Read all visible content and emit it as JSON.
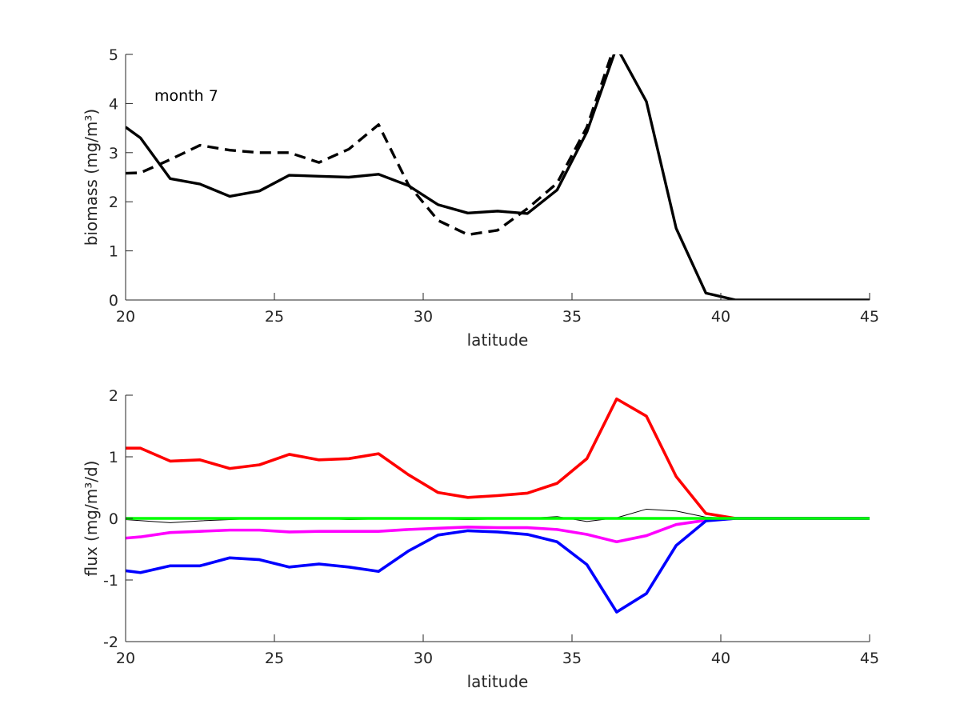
{
  "chart_data": [
    {
      "type": "line",
      "annotation": "month 7",
      "xlabel": "latitude",
      "ylabel": "biomass (mg/m³)",
      "xlim": [
        20,
        45
      ],
      "ylim": [
        0,
        5
      ],
      "xticks": [
        "20",
        "25",
        "30",
        "35",
        "40",
        "45"
      ],
      "yticks": [
        "0",
        "1",
        "2",
        "3",
        "4",
        "5"
      ],
      "grid": false,
      "series": [
        {
          "color": "#000000",
          "style": "solid",
          "points": [
            [
              20,
              3.52
            ],
            [
              20.5,
              3.3
            ],
            [
              21.5,
              2.47
            ],
            [
              22.5,
              2.36
            ],
            [
              23.5,
              2.11
            ],
            [
              24.5,
              2.22
            ],
            [
              25.5,
              2.54
            ],
            [
              26.5,
              2.52
            ],
            [
              27.5,
              2.5
            ],
            [
              28.5,
              2.56
            ],
            [
              29.5,
              2.33
            ],
            [
              30.5,
              1.94
            ],
            [
              31.5,
              1.77
            ],
            [
              32.5,
              1.81
            ],
            [
              33.5,
              1.76
            ],
            [
              34.5,
              2.24
            ],
            [
              35.5,
              3.42
            ],
            [
              36.5,
              5.15
            ],
            [
              37.5,
              4.04
            ],
            [
              38.5,
              1.46
            ],
            [
              39.5,
              0.14
            ],
            [
              40.5,
              0.0
            ],
            [
              41.5,
              0.0
            ],
            [
              42.5,
              0.0
            ],
            [
              43.5,
              0.0
            ],
            [
              44.5,
              0.0
            ],
            [
              45,
              0.0
            ]
          ]
        },
        {
          "color": "#000000",
          "style": "dashed",
          "points": [
            [
              20,
              2.58
            ],
            [
              20.5,
              2.59
            ],
            [
              21.5,
              2.86
            ],
            [
              22.5,
              3.15
            ],
            [
              23.5,
              3.05
            ],
            [
              24.5,
              3.0
            ],
            [
              25.5,
              3.0
            ],
            [
              26.5,
              2.8
            ],
            [
              27.5,
              3.07
            ],
            [
              28.5,
              3.57
            ],
            [
              29.5,
              2.35
            ],
            [
              30.5,
              1.62
            ],
            [
              31.5,
              1.33
            ],
            [
              32.5,
              1.42
            ],
            [
              33.5,
              1.86
            ],
            [
              34.5,
              2.38
            ],
            [
              35.5,
              3.52
            ],
            [
              36.5,
              5.3
            ]
          ]
        }
      ]
    },
    {
      "type": "line",
      "xlabel": "latitude",
      "ylabel": "flux (mg/m³/d)",
      "xlim": [
        20,
        45
      ],
      "ylim": [
        -2,
        2
      ],
      "xticks": [
        "20",
        "25",
        "30",
        "35",
        "40",
        "45"
      ],
      "yticks": [
        "-2",
        "-1",
        "0",
        "1",
        "2"
      ],
      "grid": false,
      "series": [
        {
          "color": "#ff0000",
          "width": 3.6,
          "points": [
            [
              20,
              1.14
            ],
            [
              20.5,
              1.14
            ],
            [
              21.5,
              0.93
            ],
            [
              22.5,
              0.95
            ],
            [
              23.5,
              0.81
            ],
            [
              24.5,
              0.87
            ],
            [
              25.5,
              1.04
            ],
            [
              26.5,
              0.95
            ],
            [
              27.5,
              0.97
            ],
            [
              28.5,
              1.05
            ],
            [
              29.5,
              0.71
            ],
            [
              30.5,
              0.42
            ],
            [
              31.5,
              0.34
            ],
            [
              32.5,
              0.37
            ],
            [
              33.5,
              0.41
            ],
            [
              34.5,
              0.57
            ],
            [
              35.5,
              0.97
            ],
            [
              36.5,
              1.94
            ],
            [
              37.5,
              1.66
            ],
            [
              38.5,
              0.68
            ],
            [
              39.5,
              0.08
            ],
            [
              40.5,
              0.0
            ],
            [
              41.5,
              0.0
            ],
            [
              42.5,
              0.0
            ],
            [
              43.5,
              0.0
            ],
            [
              44.5,
              0.0
            ],
            [
              45,
              0.0
            ]
          ]
        },
        {
          "color": "#000000",
          "width": 1,
          "points": [
            [
              20,
              -0.02
            ],
            [
              21.5,
              -0.07
            ],
            [
              22.5,
              -0.04
            ],
            [
              23.5,
              -0.02
            ],
            [
              24.5,
              0.0
            ],
            [
              25.5,
              0.01
            ],
            [
              26.5,
              0.0
            ],
            [
              27.5,
              -0.02
            ],
            [
              28.5,
              -0.01
            ],
            [
              29.5,
              0.0
            ],
            [
              30.5,
              -0.01
            ],
            [
              31.5,
              -0.02
            ],
            [
              32.5,
              -0.01
            ],
            [
              33.5,
              0.0
            ],
            [
              34.5,
              0.03
            ],
            [
              35.5,
              -0.05
            ],
            [
              36.5,
              0.01
            ],
            [
              37.5,
              0.15
            ],
            [
              38.5,
              0.12
            ],
            [
              39.5,
              0.02
            ],
            [
              40.5,
              0.0
            ],
            [
              45,
              0.0
            ]
          ]
        },
        {
          "color": "#ff00ff",
          "width": 3.6,
          "points": [
            [
              20,
              -0.32
            ],
            [
              20.5,
              -0.3
            ],
            [
              21.5,
              -0.23
            ],
            [
              22.5,
              -0.21
            ],
            [
              23.5,
              -0.19
            ],
            [
              24.5,
              -0.19
            ],
            [
              25.5,
              -0.22
            ],
            [
              26.5,
              -0.21
            ],
            [
              27.5,
              -0.21
            ],
            [
              28.5,
              -0.21
            ],
            [
              29.5,
              -0.18
            ],
            [
              30.5,
              -0.16
            ],
            [
              31.5,
              -0.14
            ],
            [
              32.5,
              -0.15
            ],
            [
              33.5,
              -0.15
            ],
            [
              34.5,
              -0.18
            ],
            [
              35.5,
              -0.26
            ],
            [
              36.5,
              -0.38
            ],
            [
              37.5,
              -0.28
            ],
            [
              38.5,
              -0.1
            ],
            [
              39.5,
              -0.03
            ],
            [
              40.5,
              0.0
            ],
            [
              45,
              0.0
            ]
          ]
        },
        {
          "color": "#0000ff",
          "width": 3.6,
          "points": [
            [
              20,
              -0.85
            ],
            [
              20.5,
              -0.88
            ],
            [
              21.5,
              -0.77
            ],
            [
              22.5,
              -0.77
            ],
            [
              23.5,
              -0.64
            ],
            [
              24.5,
              -0.67
            ],
            [
              25.5,
              -0.79
            ],
            [
              26.5,
              -0.74
            ],
            [
              27.5,
              -0.79
            ],
            [
              28.5,
              -0.86
            ],
            [
              29.5,
              -0.53
            ],
            [
              30.5,
              -0.27
            ],
            [
              31.5,
              -0.2
            ],
            [
              32.5,
              -0.22
            ],
            [
              33.5,
              -0.26
            ],
            [
              34.5,
              -0.38
            ],
            [
              35.5,
              -0.75
            ],
            [
              36.5,
              -1.52
            ],
            [
              37.5,
              -1.22
            ],
            [
              38.5,
              -0.44
            ],
            [
              39.5,
              -0.04
            ],
            [
              40.5,
              0.0
            ],
            [
              45,
              0.0
            ]
          ]
        },
        {
          "color": "#00ff00",
          "width": 3.6,
          "points": [
            [
              20,
              0.0
            ],
            [
              25,
              0.0
            ],
            [
              30,
              0.0
            ],
            [
              35,
              0.0
            ],
            [
              40,
              0.0
            ],
            [
              45,
              0.0
            ]
          ]
        }
      ]
    }
  ]
}
